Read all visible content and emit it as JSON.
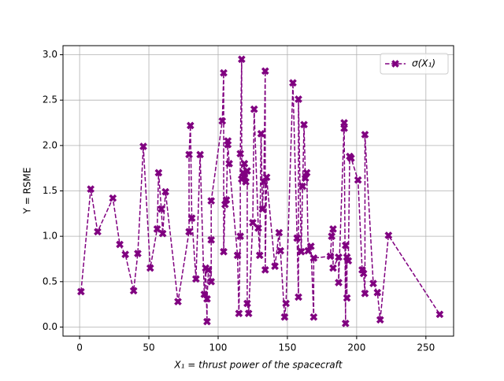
{
  "chart_data": {
    "type": "line",
    "xlabel": "X₁ = thrust power of the spacecraft",
    "ylabel": "Y = RSME",
    "xlim": [
      -12,
      270
    ],
    "ylim": [
      -0.1,
      3.1
    ],
    "xticks": [
      0,
      50,
      100,
      150,
      200,
      250
    ],
    "yticks": [
      {
        "value": 0,
        "label": "0.0"
      },
      0.5,
      {
        "value": 1,
        "label": "1.0"
      },
      1.5,
      {
        "value": 2,
        "label": "2.0"
      },
      2.5,
      {
        "value": 3,
        "label": "3.0"
      }
    ],
    "grid": true,
    "legend": "upper right",
    "x": [
      1,
      8,
      13,
      24,
      29,
      33,
      39,
      42,
      46,
      51,
      56,
      57,
      59,
      60,
      62,
      71,
      79,
      79,
      80,
      81,
      84,
      87,
      90,
      91,
      92,
      92,
      93,
      95,
      95,
      95,
      103,
      104,
      104,
      105,
      106,
      107,
      107,
      108,
      114,
      115,
      116,
      116,
      117,
      117,
      118,
      119,
      119,
      120,
      121,
      121,
      122,
      125,
      126,
      129,
      130,
      131,
      132,
      133,
      134,
      134,
      135,
      141,
      144,
      145,
      148,
      149,
      154,
      157,
      158,
      158,
      160,
      161,
      162,
      163,
      164,
      165,
      167,
      169,
      169,
      181,
      182,
      183,
      183,
      187,
      187,
      191,
      191,
      192,
      192,
      193,
      193,
      194,
      195,
      196,
      201,
      204,
      205,
      206,
      206,
      212,
      215,
      217,
      223,
      260
    ],
    "series": [
      {
        "name": "σ(X₁)",
        "color": "#800080",
        "values": [
          0.39,
          1.52,
          1.05,
          1.42,
          0.91,
          0.8,
          0.4,
          0.81,
          1.99,
          0.65,
          1.08,
          1.7,
          1.3,
          1.03,
          1.49,
          0.28,
          1.05,
          1.9,
          2.22,
          1.2,
          0.53,
          1.9,
          0.36,
          0.65,
          0.06,
          0.31,
          0.63,
          0.5,
          0.96,
          1.39,
          2.27,
          2.8,
          0.83,
          1.35,
          1.4,
          2.05,
          2.01,
          1.8,
          0.79,
          0.15,
          1.0,
          1.91,
          2.95,
          1.63,
          1.7,
          1.8,
          1.65,
          1.6,
          1.72,
          0.26,
          0.15,
          1.15,
          2.4,
          1.09,
          0.79,
          2.13,
          1.3,
          1.6,
          2.82,
          0.63,
          1.65,
          0.67,
          1.04,
          0.84,
          0.11,
          0.26,
          2.69,
          0.98,
          0.33,
          2.51,
          0.83,
          1.55,
          2.23,
          1.64,
          1.7,
          0.84,
          0.89,
          0.11,
          0.76,
          0.78,
          1.0,
          1.08,
          0.65,
          0.77,
          0.49,
          2.25,
          2.19,
          0.04,
          0.9,
          0.32,
          0.77,
          0.73,
          1.88,
          1.86,
          1.62,
          0.63,
          0.59,
          0.37,
          2.12,
          0.48,
          0.38,
          0.08,
          1.01,
          0.14
        ]
      }
    ]
  }
}
